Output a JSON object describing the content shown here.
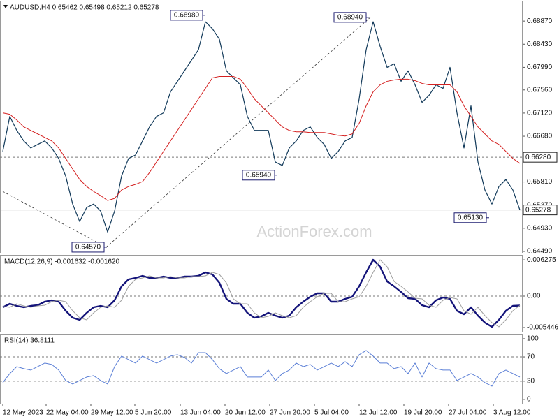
{
  "chart_data": [
    {
      "type": "line",
      "title": "AUDUSD,H4  0.65462 0.65498 0.65212 0.65278",
      "watermark": "ActionForex.com",
      "xlim": [
        0,
        74
      ],
      "ylim": [
        0.64463,
        0.69257
      ],
      "yticks": [
        {
          "value": 0.6887,
          "label": "0.68870"
        },
        {
          "value": 0.6843,
          "label": "0.68430"
        },
        {
          "value": 0.6799,
          "label": "0.67990"
        },
        {
          "value": 0.6756,
          "label": "0.67560"
        },
        {
          "value": 0.6712,
          "label": "0.67120"
        },
        {
          "value": 0.6668,
          "label": "0.66680"
        },
        {
          "value": 0.6581,
          "label": "0.65810"
        },
        {
          "value": 0.6537,
          "label": "0.65370"
        },
        {
          "value": 0.6493,
          "label": "0.64930"
        },
        {
          "value": 0.6449,
          "label": "0.64490"
        }
      ],
      "levels": [
        {
          "value": 0.6628,
          "label": "0.66280",
          "style": "dashed"
        },
        {
          "value": 0.65278,
          "label": "0.65278",
          "style": "solid"
        }
      ],
      "series": [
        {
          "color": "#123a5a",
          "width": 1.2,
          "values": [
            0.6639,
            0.67057,
            0.6679,
            0.6659,
            0.66457,
            0.66524,
            0.6659,
            0.66457,
            0.66257,
            0.65924,
            0.6539,
            0.65057,
            0.65324,
            0.6539,
            0.65257,
            0.64857,
            0.65257,
            0.65924,
            0.66257,
            0.66324,
            0.6659,
            0.66857,
            0.67057,
            0.67124,
            0.67524,
            0.67724,
            0.67924,
            0.68124,
            0.68324,
            0.68857,
            0.68724,
            0.68524,
            0.67924,
            0.6779,
            0.67657,
            0.67057,
            0.6679,
            0.6679,
            0.6679,
            0.6619,
            0.66124,
            0.66457,
            0.6659,
            0.6679,
            0.66857,
            0.66657,
            0.66524,
            0.66257,
            0.6639,
            0.6659,
            0.66657,
            0.6739,
            0.68324,
            0.68857,
            0.6839,
            0.6799,
            0.68057,
            0.67724,
            0.67924,
            0.67657,
            0.67324,
            0.67457,
            0.67657,
            0.6759,
            0.6799,
            0.67124,
            0.66457,
            0.67257,
            0.6619,
            0.65657,
            0.6539,
            0.65724,
            0.65857,
            0.65657,
            0.65278
          ]
        },
        {
          "color": "#d42020",
          "width": 1,
          "values": [
            0.67124,
            0.67097,
            0.6699,
            0.66857,
            0.6679,
            0.66724,
            0.66657,
            0.6659,
            0.66457,
            0.66257,
            0.66057,
            0.65857,
            0.65724,
            0.6563,
            0.6555,
            0.65457,
            0.65497,
            0.65657,
            0.65724,
            0.65764,
            0.65817,
            0.6599,
            0.6619,
            0.6639,
            0.6659,
            0.6679,
            0.6699,
            0.6719,
            0.6739,
            0.6759,
            0.6779,
            0.67817,
            0.67817,
            0.67817,
            0.67764,
            0.6759,
            0.6739,
            0.67257,
            0.67124,
            0.6699,
            0.66857,
            0.6679,
            0.66764,
            0.66764,
            0.6675,
            0.6675,
            0.6675,
            0.66724,
            0.66697,
            0.66684,
            0.66724,
            0.66924,
            0.67257,
            0.67524,
            0.67657,
            0.67724,
            0.6775,
            0.67764,
            0.67764,
            0.67737,
            0.67684,
            0.67657,
            0.67657,
            0.67657,
            0.67657,
            0.67524,
            0.67257,
            0.67057,
            0.66857,
            0.66724,
            0.6659,
            0.66524,
            0.6639,
            0.66257,
            0.66164
          ]
        }
      ],
      "trendlines": [
        {
          "x": [
            0,
            14.8
          ],
          "values": [
            0.6563,
            0.6457
          ]
        },
        {
          "x": [
            14.8,
            52.6
          ],
          "values": [
            0.6457,
            0.6894
          ]
        }
      ],
      "annotations": [
        {
          "label": "0.68980",
          "value": 0.6898,
          "x": 28.8
        },
        {
          "label": "0.68940",
          "value": 0.6894,
          "x": 52.2
        },
        {
          "label": "0.65940",
          "value": 0.6594,
          "x": 39.1
        },
        {
          "label": "0.65130",
          "value": 0.6513,
          "x": 69.4
        },
        {
          "label": "0.64570",
          "value": 0.6457,
          "x": 14.7
        }
      ]
    },
    {
      "type": "line",
      "title": "MACD(12,26,9) -0.001632 -0.001620",
      "xlim": [
        0,
        74
      ],
      "ylim": [
        -0.006171,
        0.007139
      ],
      "yticks": [
        0.006275,
        {
          "value": 0,
          "label": "0.00"
        },
        -0.005446
      ],
      "levels": [
        {
          "value": 0,
          "style": "dashed"
        }
      ],
      "series": [
        {
          "color": "#14147a",
          "width": 2.4,
          "values": [
            -0.001936,
            -0.001331,
            -0.001694,
            -0.001936,
            -0.001694,
            -0.001573,
            -0.000968,
            -0.000726,
            -0.000968,
            -0.002541,
            -0.003751,
            -0.004114,
            -0.002904,
            -0.001936,
            -0.001694,
            -0.001936,
            -0.000726,
            0.001694,
            0.002904,
            0.003146,
            0.003509,
            0.003146,
            0.003146,
            0.003388,
            0.003146,
            0.003146,
            0.003388,
            0.003388,
            0.003509,
            0.004114,
            0.003751,
            0.002299,
            -0.000484,
            -0.001331,
            -0.001331,
            -0.002904,
            -0.003751,
            -0.003509,
            -0.002904,
            -0.003388,
            -0.003751,
            -0.003388,
            -0.001936,
            -0.000968,
            -0.000121,
            0.000484,
            0.000484,
            -0.000968,
            -0.000968,
            -0.000484,
            -0.000121,
            0.001694,
            0.004114,
            0.006292,
            0.005082,
            0.002541,
            0.001694,
            0.000726,
            -0.000363,
            -0.000484,
            -0.001573,
            -0.001936,
            -0.000726,
            -0.000242,
            -0.000484,
            -0.002541,
            -0.003146,
            -0.001936,
            -0.003388,
            -0.004598,
            -0.005324,
            -0.004114,
            -0.002541,
            -0.001694,
            -0.001632
          ]
        },
        {
          "color": "#a0a0a0",
          "width": 1,
          "values": [
            -0.0018,
            -0.001936,
            -0.001331,
            -0.001694,
            -0.001936,
            -0.001694,
            -0.001573,
            -0.000968,
            -0.000726,
            -0.000968,
            -0.002541,
            -0.003751,
            -0.004114,
            -0.002904,
            -0.001936,
            -0.001694,
            -0.001936,
            -0.000726,
            0.001694,
            0.002904,
            0.003146,
            0.003509,
            0.003146,
            0.003146,
            0.003388,
            0.003146,
            0.003146,
            0.003388,
            0.003388,
            0.003509,
            0.004114,
            0.003751,
            0.002299,
            -0.000484,
            -0.001331,
            -0.001331,
            -0.002904,
            -0.003751,
            -0.003509,
            -0.002904,
            -0.003388,
            -0.003751,
            -0.003388,
            -0.001936,
            -0.000968,
            -0.000121,
            0.000484,
            0.000484,
            -0.000968,
            -0.000968,
            -0.000484,
            -0.000121,
            0.001694,
            0.004114,
            0.006292,
            0.005082,
            0.002541,
            0.001694,
            0.000726,
            -0.000363,
            -0.000484,
            -0.001573,
            -0.001936,
            -0.000726,
            -0.000242,
            -0.000484,
            -0.002541,
            -0.003146,
            -0.001936,
            -0.003388,
            -0.004598,
            -0.005324,
            -0.004114,
            -0.002541,
            -0.00162
          ]
        }
      ]
    },
    {
      "type": "line",
      "title": "RSI(14) 36.8111",
      "xlim": [
        0,
        74
      ],
      "ylim": [
        -7,
        108
      ],
      "yticks": [
        100,
        70,
        30,
        0
      ],
      "levels": [
        {
          "value": 70,
          "style": "dashed"
        },
        {
          "value": 30,
          "style": "dashed"
        }
      ],
      "series": [
        {
          "color": "#5b7fd6",
          "width": 1,
          "values": [
            27.6,
            42.5,
            54,
            50.6,
            48.3,
            54,
            59.8,
            57.5,
            48.3,
            31,
            25.3,
            31,
            36.8,
            39.1,
            31,
            25.3,
            54,
            71.3,
            65.5,
            59.8,
            71.3,
            65.5,
            59.8,
            65.5,
            71.3,
            73.6,
            69,
            59.8,
            77,
            77,
            65.5,
            50.6,
            42.5,
            48.3,
            54,
            36.8,
            36.8,
            36.8,
            48.3,
            31,
            42.5,
            48.3,
            59.8,
            54,
            57.5,
            48.3,
            54,
            59.8,
            54,
            62.1,
            54,
            73.6,
            80.5,
            71.3,
            59.8,
            59.8,
            50.6,
            54,
            42.5,
            59.8,
            36.8,
            59.8,
            50.6,
            48.3,
            48.3,
            31,
            36.8,
            42.5,
            36.8,
            27.6,
            21.8,
            42.5,
            48.3,
            42.5,
            36.8111
          ]
        }
      ],
      "xticks": [
        {
          "value": 0,
          "label": "12 May 2023"
        },
        {
          "value": 6.2,
          "label": "22 May 04:00"
        },
        {
          "value": 12.6,
          "label": "29 May 12:00"
        },
        {
          "value": 18.9,
          "label": "5 Jun 20:00"
        },
        {
          "value": 25.4,
          "label": "13 Jun 04:00"
        },
        {
          "value": 31.8,
          "label": "20 Jun 12:00"
        },
        {
          "value": 38.2,
          "label": "27 Jun 20:00"
        },
        {
          "value": 44.6,
          "label": "5 Jul 04:00"
        },
        {
          "value": 51,
          "label": "12 Jul 12:00"
        },
        {
          "value": 57.4,
          "label": "19 Jul 20:00"
        },
        {
          "value": 63.8,
          "label": "27 Jul 04:00"
        },
        {
          "value": 70.2,
          "label": "3 Aug 12:00"
        }
      ]
    }
  ]
}
